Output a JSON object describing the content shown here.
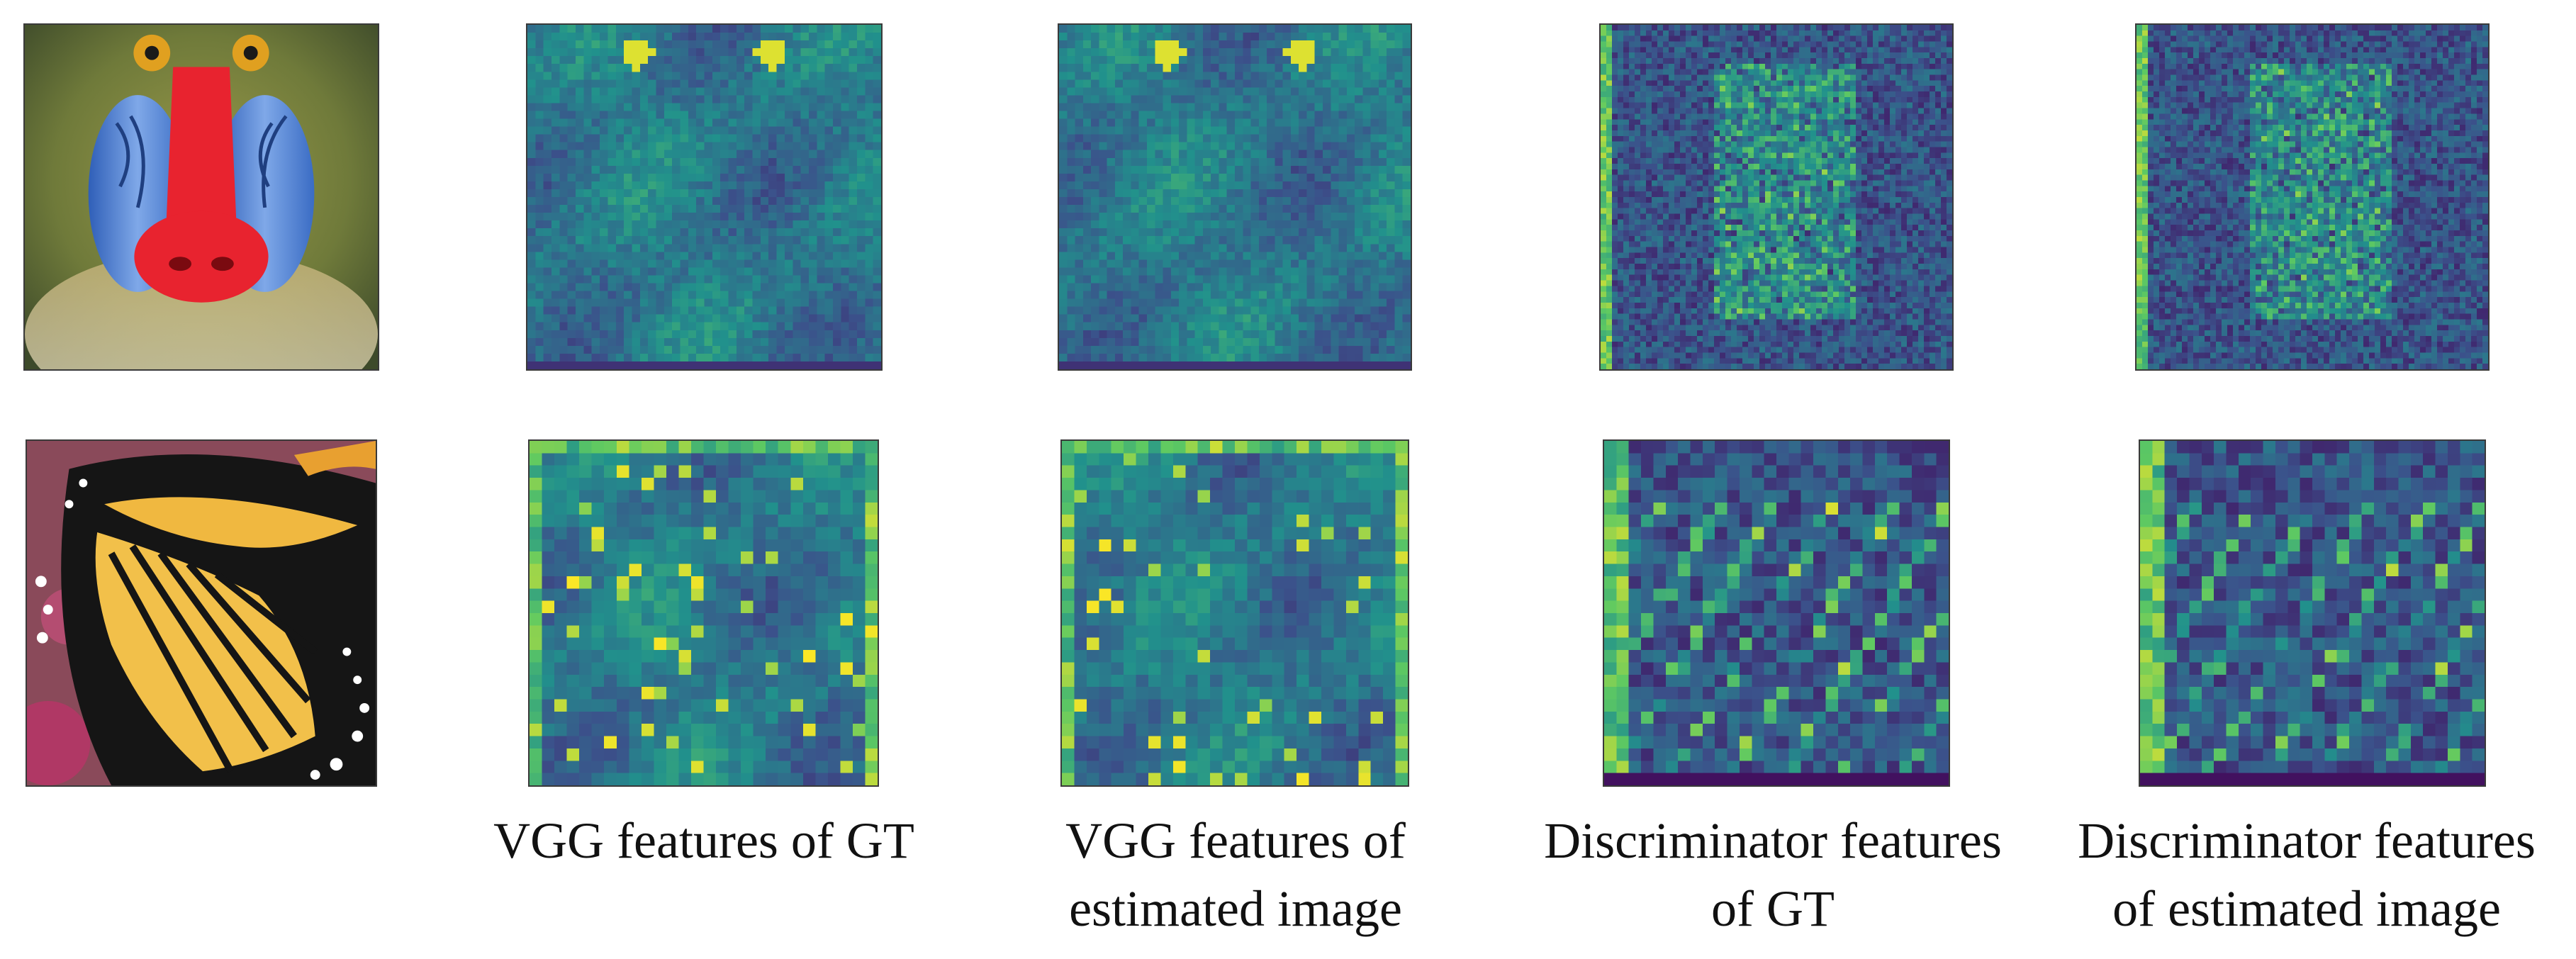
{
  "figure": {
    "colormap": "viridis",
    "rows": [
      {
        "name": "baboon",
        "image_label": "Baboon input image"
      },
      {
        "name": "butterfly",
        "image_label": "Butterfly input image"
      }
    ],
    "columns": [
      {
        "name": "vgg-gt",
        "caption_lines": [
          "VGG features of GT"
        ]
      },
      {
        "name": "vgg-est",
        "caption_lines": [
          "VGG features of",
          "estimated image"
        ]
      },
      {
        "name": "disc-gt",
        "caption_lines": [
          "Discriminator features",
          "of GT"
        ]
      },
      {
        "name": "disc-est",
        "caption_lines": [
          "Discriminator features",
          "of estimated image"
        ]
      }
    ]
  }
}
